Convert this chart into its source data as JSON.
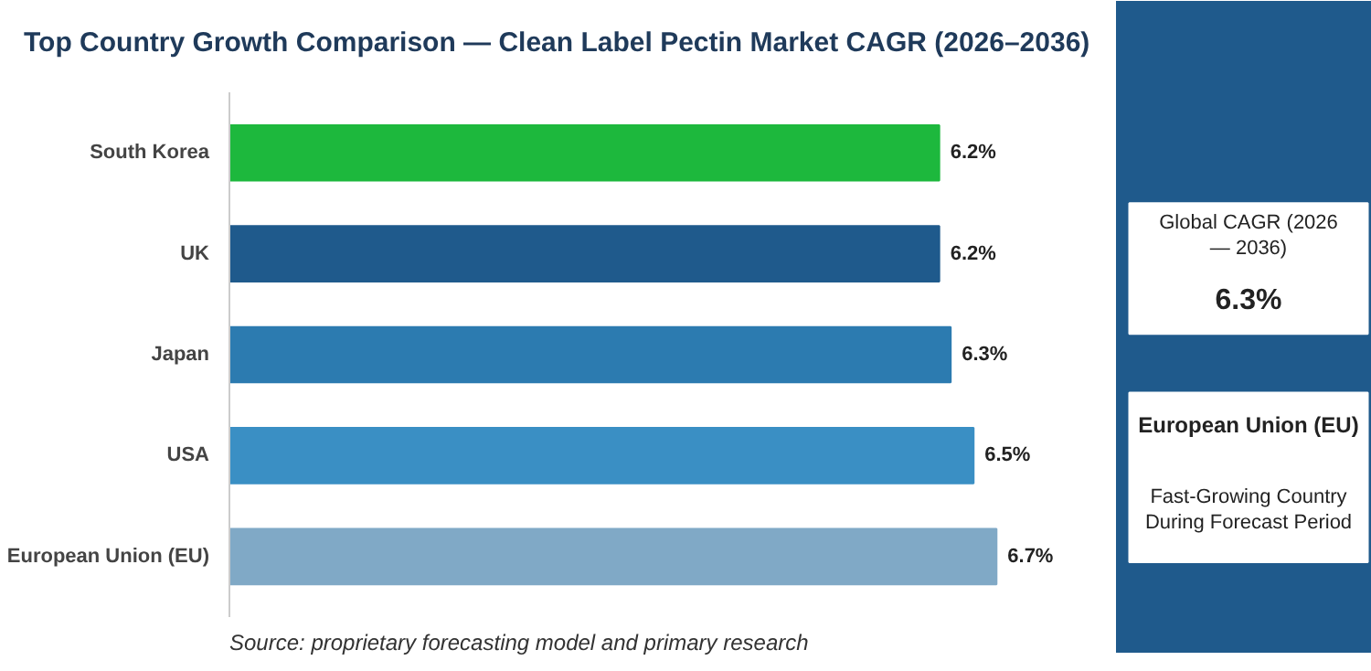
{
  "chart_data": {
    "type": "bar",
    "orientation": "horizontal",
    "title": "Top Country Growth Comparison — Clean Label Pectin Market CAGR (2026–2036)",
    "categories": [
      "South Korea",
      "UK",
      "Japan",
      "USA",
      "European Union (EU)"
    ],
    "values": [
      6.2,
      6.2,
      6.3,
      6.5,
      6.7
    ],
    "colors": [
      "#1db83d",
      "#1f5a8c",
      "#2c7bb0",
      "#3a8fc4",
      "#80a9c6"
    ],
    "value_labels": [
      "6.2%",
      "6.2%",
      "6.3%",
      "6.5%",
      "6.7%"
    ],
    "tick_labels": "y",
    "grid": false,
    "annotations": [
      "Source: proprietary forecasting model and primary research",
      "Global CAGR (2026 — 2036)",
      "6.3%",
      "European Union (EU)",
      "Fast-Growing Country During Forecast Period"
    ]
  }
}
